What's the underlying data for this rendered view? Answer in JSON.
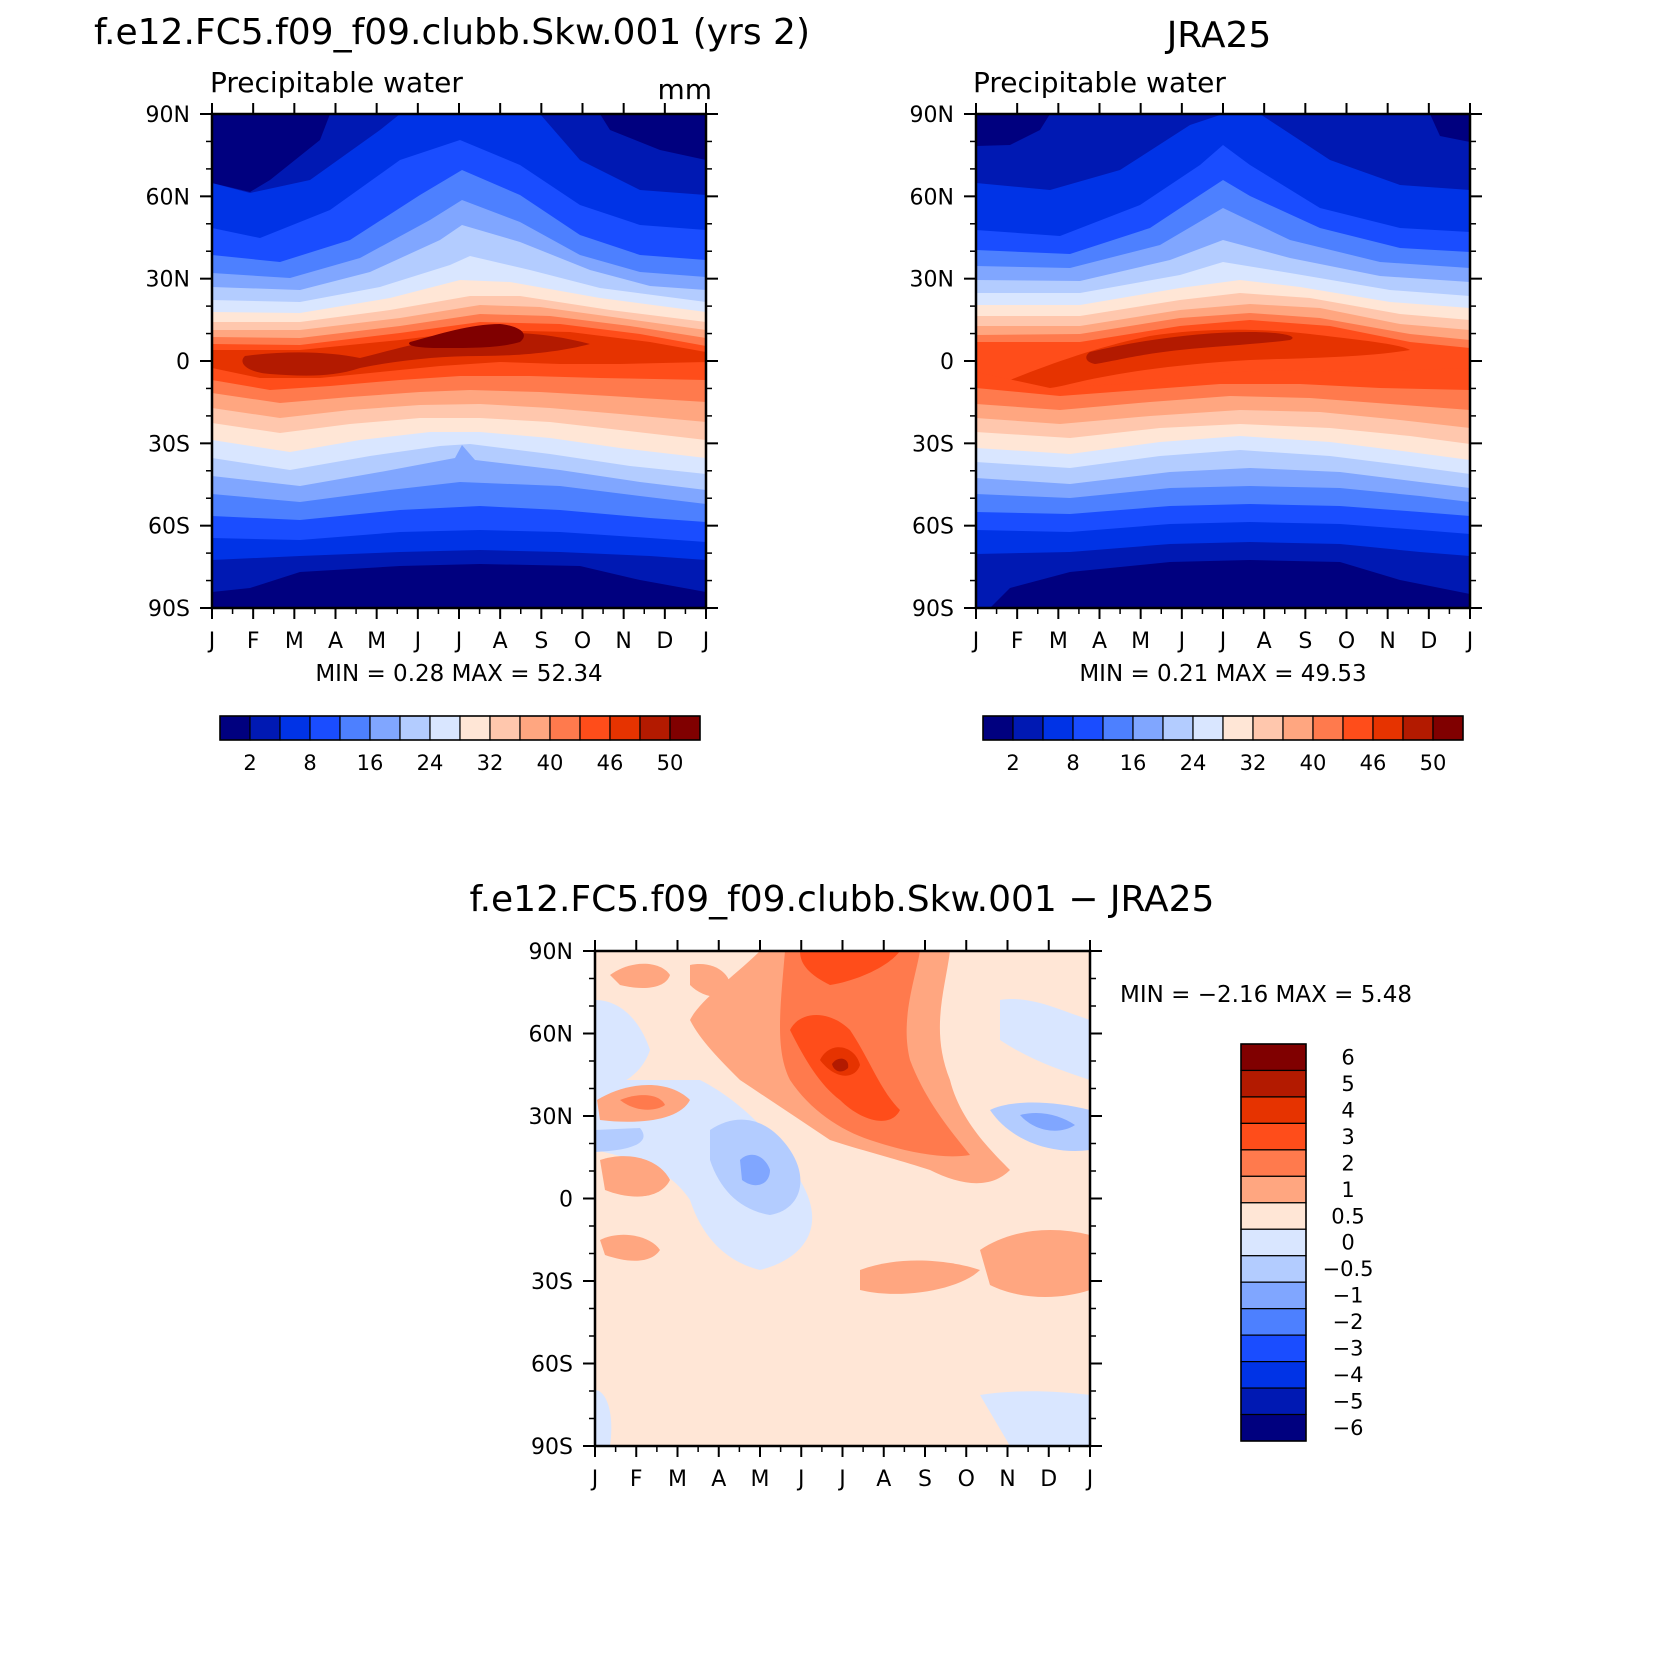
{
  "months": [
    "J",
    "F",
    "M",
    "A",
    "M",
    "J",
    "J",
    "A",
    "S",
    "O",
    "N",
    "D",
    "J"
  ],
  "lat_labels": [
    "90N",
    "60N",
    "30N",
    "0",
    "30S",
    "60S",
    "90S"
  ],
  "abs_colors": [
    "#00007f",
    "#0019b3",
    "#0033e6",
    "#1a4dff",
    "#4d80ff",
    "#80a6ff",
    "#b3ccff",
    "#d9e6ff",
    "#ffe6d6",
    "#ffc7ad",
    "#ffa680",
    "#ff7a4d",
    "#ff4d1a",
    "#e63300",
    "#b31a00",
    "#800000"
  ],
  "abs_tick_labels": [
    "2",
    "8",
    "16",
    "24",
    "32",
    "40",
    "46",
    "50"
  ],
  "diff_colors": [
    "#00007f",
    "#0019b3",
    "#0033e6",
    "#1a4dff",
    "#4d80ff",
    "#80a6ff",
    "#b3ccff",
    "#d9e6ff",
    "#ffe6d6",
    "#ffa680",
    "#ff7a4d",
    "#ff4d1a",
    "#e63300",
    "#b31a00",
    "#800000"
  ],
  "diff_tick_labels": [
    "6",
    "5",
    "4",
    "3",
    "2",
    "1",
    "0.5",
    "0",
    "−0.5",
    "−1",
    "−2",
    "−3",
    "−4",
    "−5",
    "−6"
  ],
  "panels": {
    "model": {
      "title": "f.e12.FC5.f09_f09.clubb.Skw.001 (yrs 2)",
      "variable": "Precipitable water",
      "units": "mm",
      "minmax": "MIN =     0.28  MAX =    52.34"
    },
    "obs": {
      "title": "JRA25",
      "variable": "Precipitable water",
      "minmax": "MIN =     0.21  MAX =    49.53"
    },
    "diff": {
      "title": "f.e12.FC5.f09_f09.clubb.Skw.001 − JRA25",
      "minmax": "MIN =   −2.16  MAX =     5.48"
    }
  },
  "chart_data": [
    {
      "type": "heatmap",
      "title": "f.e12.FC5.f09_f09.clubb.Skw.001 (yrs 2)",
      "subtitle": "Precipitable water",
      "units": "mm",
      "x": [
        "J",
        "F",
        "M",
        "A",
        "M",
        "J",
        "J",
        "A",
        "S",
        "O",
        "N",
        "D",
        "J"
      ],
      "y": [
        "90N",
        "60N",
        "30N",
        "0",
        "30S",
        "60S",
        "90S"
      ],
      "min": 0.28,
      "max": 52.34,
      "contour_levels": [
        2,
        8,
        16,
        24,
        32,
        40,
        46,
        50
      ],
      "approx_values_mm": [
        [
          2,
          1,
          2,
          3,
          5,
          10,
          12,
          10,
          6,
          3,
          2,
          1,
          2
        ],
        [
          6,
          5,
          6,
          8,
          11,
          16,
          18,
          16,
          12,
          8,
          6,
          5,
          6
        ],
        [
          18,
          18,
          20,
          24,
          30,
          36,
          38,
          36,
          30,
          24,
          20,
          18,
          18
        ],
        [
          44,
          46,
          46,
          44,
          44,
          46,
          48,
          48,
          46,
          44,
          42,
          42,
          44
        ],
        [
          32,
          30,
          28,
          26,
          22,
          20,
          20,
          20,
          22,
          24,
          26,
          28,
          32
        ],
        [
          8,
          8,
          7,
          7,
          6,
          6,
          6,
          6,
          6,
          7,
          7,
          8,
          8
        ],
        [
          1,
          1,
          1,
          0.5,
          0.5,
          0.5,
          0.5,
          0.5,
          0.5,
          0.5,
          1,
          1,
          1
        ]
      ]
    },
    {
      "type": "heatmap",
      "title": "JRA25",
      "subtitle": "Precipitable water",
      "x": [
        "J",
        "F",
        "M",
        "A",
        "M",
        "J",
        "J",
        "A",
        "S",
        "O",
        "N",
        "D",
        "J"
      ],
      "y": [
        "90N",
        "60N",
        "30N",
        "0",
        "30S",
        "60S",
        "90S"
      ],
      "min": 0.21,
      "max": 49.53,
      "contour_levels": [
        2,
        8,
        16,
        24,
        32,
        40,
        46,
        50
      ],
      "approx_values_mm": [
        [
          1,
          1,
          2,
          3,
          5,
          8,
          10,
          8,
          5,
          3,
          2,
          1,
          1
        ],
        [
          5,
          5,
          6,
          7,
          9,
          13,
          16,
          14,
          10,
          7,
          6,
          5,
          5
        ],
        [
          17,
          17,
          19,
          22,
          27,
          32,
          34,
          32,
          27,
          22,
          19,
          17,
          17
        ],
        [
          43,
          44,
          45,
          44,
          43,
          43,
          44,
          45,
          45,
          44,
          43,
          43,
          43
        ],
        [
          30,
          29,
          27,
          25,
          22,
          20,
          19,
          19,
          21,
          23,
          25,
          27,
          30
        ],
        [
          7,
          7,
          7,
          6,
          6,
          6,
          5,
          5,
          6,
          6,
          7,
          7,
          7
        ],
        [
          1,
          1,
          1,
          0.5,
          0.5,
          0.5,
          0.5,
          0.5,
          0.5,
          0.5,
          1,
          1,
          1
        ]
      ]
    },
    {
      "type": "heatmap",
      "title": "f.e12.FC5.f09_f09.clubb.Skw.001 − JRA25",
      "x": [
        "J",
        "F",
        "M",
        "A",
        "M",
        "J",
        "J",
        "A",
        "S",
        "O",
        "N",
        "D",
        "J"
      ],
      "y": [
        "90N",
        "60N",
        "30N",
        "0",
        "30S",
        "60S",
        "90S"
      ],
      "min": -2.16,
      "max": 5.48,
      "contour_levels": [
        -6,
        -5,
        -4,
        -3,
        -2,
        -1,
        -0.5,
        0,
        0.5,
        1,
        2,
        3,
        4,
        5,
        6
      ],
      "approx_values": [
        [
          1,
          0.5,
          0.5,
          0.5,
          0.5,
          2,
          3,
          2,
          1,
          0.5,
          0,
          0.5,
          1
        ],
        [
          0,
          0.5,
          0.5,
          0.5,
          1,
          2,
          4,
          2,
          1,
          0.5,
          0.5,
          0.5,
          0
        ],
        [
          -0.5,
          0,
          0.5,
          0.5,
          1,
          2,
          2,
          3,
          2,
          0.5,
          -0.5,
          -1,
          -0.5
        ],
        [
          1,
          1,
          0.5,
          -0.5,
          -0.5,
          1,
          2,
          2,
          2,
          1,
          0.5,
          0.5,
          1
        ],
        [
          0.5,
          1,
          0.5,
          -0.5,
          -1,
          -1,
          0,
          0.5,
          0.5,
          0.5,
          0.5,
          0.5,
          0.5
        ],
        [
          0.5,
          0.5,
          0.5,
          0.5,
          0.5,
          0.5,
          0.5,
          0.5,
          0.5,
          1,
          1,
          1,
          0.5
        ],
        [
          0,
          0.5,
          0.5,
          0.5,
          0.5,
          0.5,
          0.5,
          0.5,
          0.5,
          0,
          0,
          0,
          0
        ]
      ]
    }
  ]
}
